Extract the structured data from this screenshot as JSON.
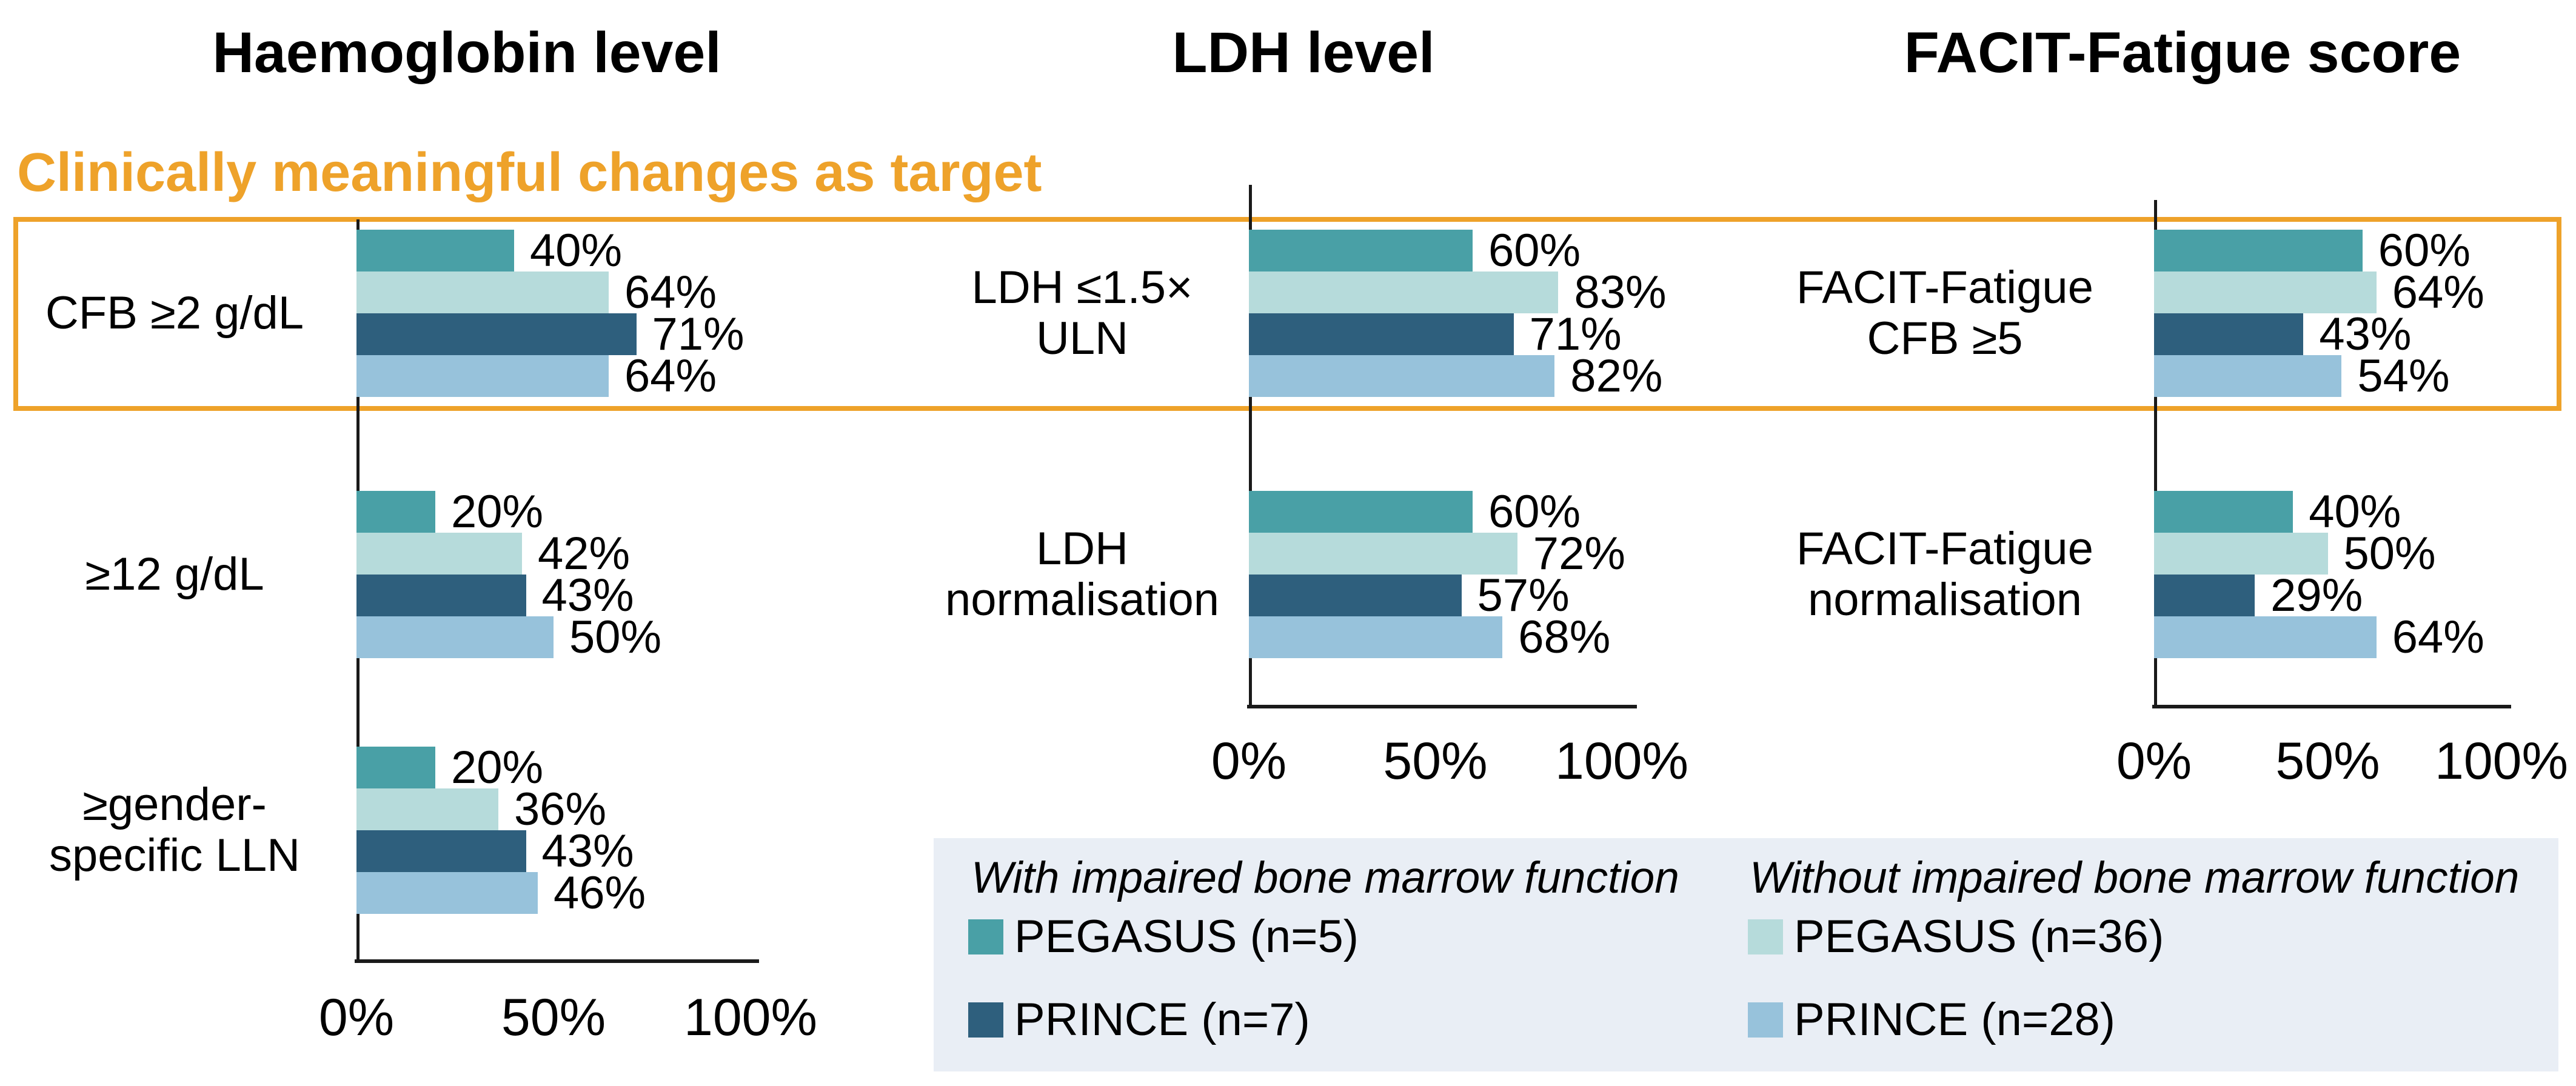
{
  "highlight": {
    "label": "Clinically meaningful changes as target",
    "color": "#EEA22A"
  },
  "colors": {
    "orange": "#EEA22A",
    "legend_background": "#E9EEF5",
    "axis": "#1a1a1a"
  },
  "chart_data": {
    "type": "bar",
    "orientation": "horizontal",
    "unit": "%",
    "xlim": [
      0,
      100
    ],
    "grid": false,
    "tick_values": [
      0,
      50,
      100
    ],
    "tick_labels": [
      "0%",
      "50%",
      "100%"
    ],
    "series": [
      {
        "name": "PEGASUS (n=5)",
        "group": "With impaired bone marrow function",
        "color": "#49A0A6"
      },
      {
        "name": "PEGASUS (n=36)",
        "group": "Without impaired bone marrow function",
        "color": "#B6DBDB"
      },
      {
        "name": "PRINCE (n=7)",
        "group": "With impaired bone marrow function",
        "color": "#2E5F7D"
      },
      {
        "name": "PRINCE (n=28)",
        "group": "Without impaired bone marrow function",
        "color": "#97C2DB"
      }
    ],
    "series_colors": [
      "#49A0A6",
      "#B6DBDB",
      "#2E5F7D",
      "#97C2DB"
    ],
    "panels": [
      {
        "title": "Haemoglobin level",
        "rows": [
          {
            "label": "CFB ≥2 g/dL",
            "label_lines": [
              "CFB ≥2 g/dL"
            ],
            "values": [
              40,
              64,
              71,
              64
            ],
            "value_labels": [
              "40%",
              "64%",
              "71%",
              "64%"
            ],
            "highlighted": true
          },
          {
            "label": "≥12 g/dL",
            "label_lines": [
              "≥12 g/dL"
            ],
            "values": [
              20,
              42,
              43,
              50
            ],
            "value_labels": [
              "20%",
              "42%",
              "43%",
              "50%"
            ],
            "highlighted": false
          },
          {
            "label": "≥gender-specific LLN",
            "label_lines": [
              "≥gender-",
              "specific LLN"
            ],
            "values": [
              20,
              36,
              43,
              46
            ],
            "value_labels": [
              "20%",
              "36%",
              "43%",
              "46%"
            ],
            "highlighted": false
          }
        ]
      },
      {
        "title": "LDH level",
        "rows": [
          {
            "label": "LDH ≤1.5× ULN",
            "label_lines": [
              "LDH ≤1.5×",
              "ULN"
            ],
            "values": [
              60,
              83,
              71,
              82
            ],
            "value_labels": [
              "60%",
              "83%",
              "71%",
              "82%"
            ],
            "highlighted": true
          },
          {
            "label": "LDH normalisation",
            "label_lines": [
              "LDH",
              "normalisation"
            ],
            "values": [
              60,
              72,
              57,
              68
            ],
            "value_labels": [
              "60%",
              "72%",
              "57%",
              "68%"
            ],
            "highlighted": false
          }
        ]
      },
      {
        "title": "FACIT-Fatigue score",
        "rows": [
          {
            "label": "FACIT-Fatigue CFB ≥5",
            "label_lines": [
              "FACIT-Fatigue",
              "CFB ≥5"
            ],
            "values": [
              60,
              64,
              43,
              54
            ],
            "value_labels": [
              "60%",
              "64%",
              "43%",
              "54%"
            ],
            "highlighted": true
          },
          {
            "label": "FACIT-Fatigue normalisation",
            "label_lines": [
              "FACIT-Fatigue",
              "normalisation"
            ],
            "values": [
              40,
              50,
              29,
              64
            ],
            "value_labels": [
              "40%",
              "50%",
              "29%",
              "64%"
            ],
            "highlighted": false
          }
        ]
      }
    ]
  },
  "legend": {
    "columns": [
      {
        "heading": "With impaired bone marrow function",
        "items": [
          {
            "label": "PEGASUS (n=5)",
            "color": "#49A0A6"
          },
          {
            "label": "PRINCE (n=7)",
            "color": "#2E5F7D"
          }
        ]
      },
      {
        "heading": "Without impaired bone marrow function",
        "items": [
          {
            "label": "PEGASUS (n=36)",
            "color": "#B6DBDB"
          },
          {
            "label": "PRINCE (n=28)",
            "color": "#97C2DB"
          }
        ]
      }
    ]
  }
}
